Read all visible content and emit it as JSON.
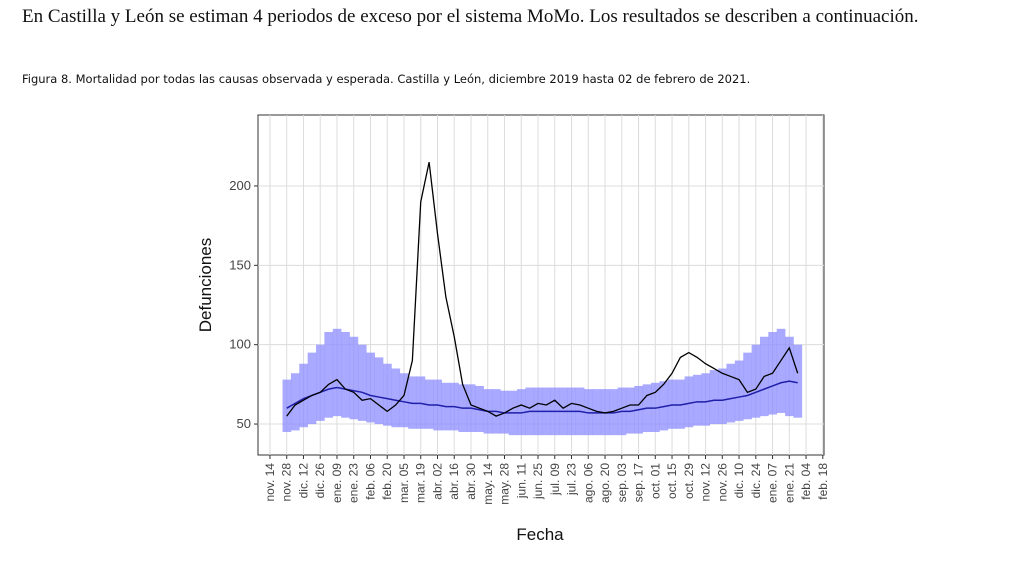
{
  "paragraph": "En Castilla y León se estiman 4 periodos de exceso por el sistema MoMo. Los resultados se describen a continuación.",
  "caption": "Figura 8. Mortalidad por todas las causas observada y esperada. Castilla y León, diciembre 2019 hasta 02 de febrero de 2021.",
  "chart_data": {
    "type": "line",
    "ylabel": "Defunciones",
    "xlabel": "Fecha",
    "xlim": [
      -10,
      463
    ],
    "ylim": [
      30.5,
      244.7
    ],
    "yticks": [
      50,
      100,
      150,
      200
    ],
    "xticks": [
      {
        "value": 0,
        "label": "nov. 14"
      },
      {
        "value": 14,
        "label": "nov. 28"
      },
      {
        "value": 28,
        "label": "dic. 12"
      },
      {
        "value": 42,
        "label": "dic. 26"
      },
      {
        "value": 56,
        "label": "ene. 09"
      },
      {
        "value": 70,
        "label": "ene. 23"
      },
      {
        "value": 84,
        "label": "feb. 06"
      },
      {
        "value": 98,
        "label": "feb. 20"
      },
      {
        "value": 112,
        "label": "mar. 05"
      },
      {
        "value": 126,
        "label": "mar. 19"
      },
      {
        "value": 140,
        "label": "abr. 02"
      },
      {
        "value": 154,
        "label": "abr. 16"
      },
      {
        "value": 168,
        "label": "abr. 30"
      },
      {
        "value": 182,
        "label": "may. 14"
      },
      {
        "value": 196,
        "label": "may. 28"
      },
      {
        "value": 210,
        "label": "jun. 11"
      },
      {
        "value": 224,
        "label": "jun. 25"
      },
      {
        "value": 238,
        "label": "jul. 09"
      },
      {
        "value": 252,
        "label": "jul. 23"
      },
      {
        "value": 266,
        "label": "ago. 06"
      },
      {
        "value": 280,
        "label": "ago. 20"
      },
      {
        "value": 294,
        "label": "sep. 03"
      },
      {
        "value": 308,
        "label": "sep. 17"
      },
      {
        "value": 322,
        "label": "oct. 01"
      },
      {
        "value": 336,
        "label": "oct. 15"
      },
      {
        "value": 350,
        "label": "oct. 29"
      },
      {
        "value": 364,
        "label": "nov. 12"
      },
      {
        "value": 378,
        "label": "nov. 26"
      },
      {
        "value": 392,
        "label": "dic. 10"
      },
      {
        "value": 406,
        "label": "dic. 24"
      },
      {
        "value": 420,
        "label": "ene. 07"
      },
      {
        "value": 434,
        "label": "ene. 21"
      },
      {
        "value": 448,
        "label": "feb. 04"
      },
      {
        "value": 462,
        "label": "feb. 18"
      }
    ],
    "grid": true,
    "x": [
      14,
      21,
      28,
      35,
      42,
      49,
      56,
      63,
      70,
      77,
      84,
      91,
      98,
      105,
      112,
      119,
      126,
      133,
      140,
      147,
      154,
      161,
      168,
      175,
      182,
      189,
      196,
      203,
      210,
      217,
      224,
      231,
      238,
      245,
      252,
      259,
      266,
      273,
      280,
      287,
      294,
      301,
      308,
      315,
      322,
      329,
      336,
      343,
      350,
      357,
      364,
      371,
      378,
      385,
      392,
      399,
      406,
      413,
      420,
      427,
      434,
      441
    ],
    "band": {
      "color": "#8c8cff",
      "upper": [
        78,
        82,
        88,
        95,
        100,
        108,
        110,
        108,
        105,
        100,
        95,
        92,
        88,
        85,
        82,
        80,
        80,
        78,
        78,
        76,
        76,
        75,
        75,
        74,
        72,
        72,
        71,
        71,
        72,
        73,
        73,
        73,
        73,
        73,
        73,
        73,
        72,
        72,
        72,
        72,
        73,
        73,
        74,
        75,
        76,
        77,
        78,
        78,
        80,
        81,
        82,
        84,
        85,
        88,
        90,
        95,
        100,
        105,
        108,
        110,
        105,
        100
      ],
      "lower": [
        45,
        46,
        48,
        50,
        52,
        54,
        55,
        54,
        53,
        52,
        51,
        50,
        49,
        48,
        48,
        47,
        47,
        47,
        46,
        46,
        46,
        45,
        45,
        45,
        44,
        44,
        44,
        43,
        43,
        43,
        43,
        43,
        43,
        43,
        43,
        43,
        43,
        43,
        43,
        43,
        43,
        44,
        44,
        45,
        45,
        46,
        47,
        47,
        48,
        49,
        49,
        50,
        50,
        51,
        52,
        53,
        54,
        55,
        56,
        57,
        55,
        54
      ]
    },
    "series": [
      {
        "color": "#1f1fa8",
        "values": [
          60,
          63,
          66,
          68,
          70,
          72,
          73,
          72,
          71,
          70,
          68,
          67,
          66,
          65,
          64,
          63,
          63,
          62,
          62,
          61,
          61,
          60,
          60,
          59,
          58,
          58,
          57,
          57,
          57,
          58,
          58,
          58,
          58,
          58,
          58,
          58,
          57,
          57,
          57,
          57,
          58,
          58,
          59,
          60,
          60,
          61,
          62,
          62,
          63,
          64,
          64,
          65,
          65,
          66,
          67,
          68,
          70,
          72,
          74,
          76,
          77,
          76
        ]
      },
      {
        "color": "#000000",
        "values": [
          55,
          62,
          65,
          68,
          70,
          75,
          78,
          72,
          70,
          65,
          66,
          62,
          58,
          62,
          68,
          90,
          190,
          215,
          170,
          130,
          105,
          75,
          62,
          60,
          58,
          55,
          57,
          60,
          62,
          60,
          63,
          62,
          65,
          60,
          63,
          62,
          60,
          58,
          57,
          58,
          60,
          62,
          62,
          68,
          70,
          75,
          82,
          92,
          95,
          92,
          88,
          85,
          82,
          80,
          78,
          70,
          72,
          80,
          82,
          90,
          98,
          82
        ]
      }
    ]
  }
}
